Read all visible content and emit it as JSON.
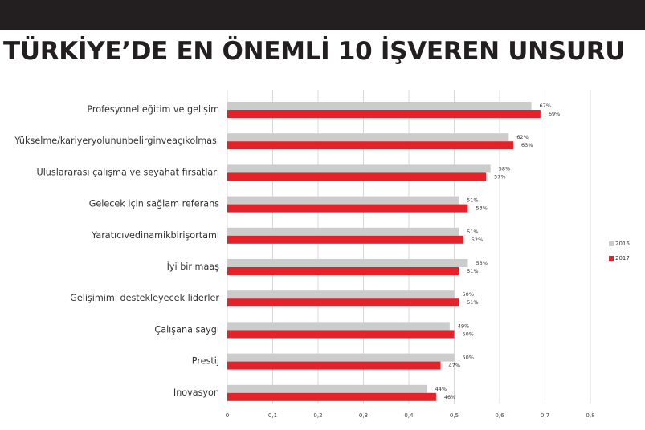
{
  "page": {
    "title": "TÜRKİYE’DE EN ÖNEMLİ 10 İŞVEREN UNSURU"
  },
  "chart_data": {
    "type": "bar",
    "orientation": "horizontal",
    "title": "TÜRKİYE’DE EN ÖNEMLİ 10 İŞVEREN UNSURU",
    "xlabel": "",
    "ylabel": "",
    "xlim": [
      0,
      0.8
    ],
    "x_ticks": [
      "0",
      "0,1",
      "0,2",
      "0,3",
      "0,4",
      "0,5",
      "0,6",
      "0,7",
      "0,8"
    ],
    "grid": "vertical",
    "legend_position": "right",
    "categories": [
      "Profesyonel eğitim ve gelişim",
      "Yükselme/kariyeryolununbelirginveaçıkolması",
      "Uluslararası çalışma ve seyahat fırsatları",
      "Gelecek için sağlam referans",
      "Yaratıcıvedinamikbirişortamı",
      "İyi bir maaş",
      "Gelişimimi destekleyecek liderler",
      "Çalışana saygı",
      "Prestij",
      "Inovasyon"
    ],
    "series": [
      {
        "name": "2016",
        "color": "#cccccc",
        "values": [
          0.67,
          0.62,
          0.58,
          0.51,
          0.51,
          0.53,
          0.5,
          0.49,
          0.5,
          0.44
        ],
        "labels": [
          "67%",
          "62%",
          "58%",
          "51%",
          "51%",
          "53%",
          "50%",
          "49%",
          "50%",
          "44%"
        ]
      },
      {
        "name": "2017",
        "color": "#e4222a",
        "values": [
          0.69,
          0.63,
          0.57,
          0.53,
          0.52,
          0.51,
          0.51,
          0.5,
          0.47,
          0.46
        ],
        "labels": [
          "69%",
          "63%",
          "57%",
          "53%",
          "52%",
          "51%",
          "51%",
          "50%",
          "47%",
          "46%"
        ]
      }
    ]
  }
}
